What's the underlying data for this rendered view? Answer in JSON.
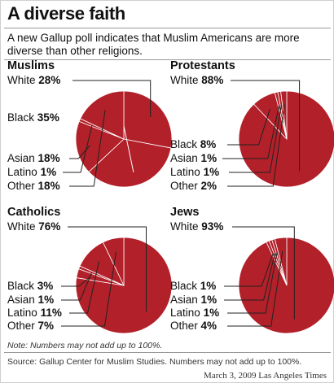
{
  "header": {
    "title": "A diverse faith",
    "subtitle": "A new Gallup poll indicates that Muslim Americans are more diverse than other religions."
  },
  "colors": {
    "slice": "#b2202a",
    "stroke": "#ffffff",
    "leader": "#222222"
  },
  "chart_data": [
    {
      "type": "pie",
      "title": "Muslims",
      "slices": [
        {
          "label": "White",
          "value": 28
        },
        {
          "label": "Black",
          "value": 35
        },
        {
          "label": "Asian",
          "value": 18
        },
        {
          "label": "Latino",
          "value": 1
        },
        {
          "label": "Other",
          "value": 18
        }
      ]
    },
    {
      "type": "pie",
      "title": "Protestants",
      "slices": [
        {
          "label": "White",
          "value": 88
        },
        {
          "label": "Black",
          "value": 8
        },
        {
          "label": "Asian",
          "value": 1
        },
        {
          "label": "Latino",
          "value": 1
        },
        {
          "label": "Other",
          "value": 2
        }
      ]
    },
    {
      "type": "pie",
      "title": "Catholics",
      "slices": [
        {
          "label": "White",
          "value": 76
        },
        {
          "label": "Black",
          "value": 3
        },
        {
          "label": "Asian",
          "value": 1
        },
        {
          "label": "Latino",
          "value": 11
        },
        {
          "label": "Other",
          "value": 7
        }
      ]
    },
    {
      "type": "pie",
      "title": "Jews",
      "slices": [
        {
          "label": "White",
          "value": 93
        },
        {
          "label": "Black",
          "value": 1
        },
        {
          "label": "Asian",
          "value": 1
        },
        {
          "label": "Latino",
          "value": 1
        },
        {
          "label": "Other",
          "value": 4
        }
      ]
    }
  ],
  "footer": {
    "note": "Note: Numbers may not add up to 100%.",
    "source": "Source: Gallup Center for Muslim Studies. Numbers may not add up to 100%.",
    "credit": "March 3, 2009 Las Angeles Times"
  }
}
